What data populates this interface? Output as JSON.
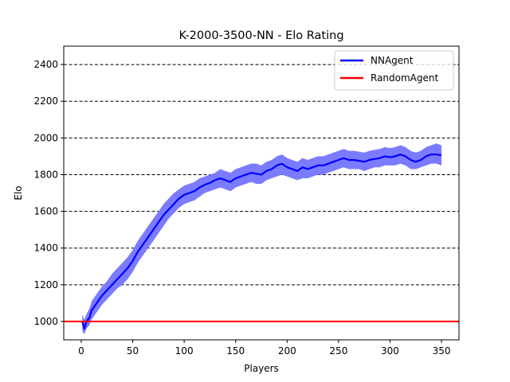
{
  "chart_data": {
    "type": "line",
    "title": "K-2000-3500-NN - Elo Rating",
    "xlabel": "Players",
    "ylabel": "Elo",
    "xlim": [
      -17,
      367
    ],
    "ylim": [
      900,
      2500
    ],
    "xticks": [
      0,
      50,
      100,
      150,
      200,
      250,
      300,
      350
    ],
    "yticks": [
      1000,
      1200,
      1400,
      1600,
      1800,
      2000,
      2200,
      2400
    ],
    "grid": "horizontal dashed",
    "legend_position": "upper right",
    "series": [
      {
        "name": "NNAgent",
        "color": "#0000ff",
        "band_color": "#7b7bff",
        "x": [
          1,
          3,
          5,
          8,
          10,
          15,
          20,
          25,
          30,
          35,
          40,
          45,
          50,
          55,
          60,
          65,
          70,
          75,
          80,
          85,
          90,
          95,
          100,
          105,
          110,
          115,
          120,
          125,
          130,
          135,
          140,
          145,
          150,
          155,
          160,
          165,
          170,
          175,
          180,
          185,
          190,
          195,
          200,
          205,
          210,
          215,
          220,
          225,
          230,
          235,
          240,
          245,
          250,
          255,
          260,
          265,
          270,
          275,
          280,
          285,
          290,
          295,
          300,
          305,
          310,
          315,
          320,
          325,
          330,
          335,
          340,
          345,
          350
        ],
        "values": [
          1000,
          960,
          1000,
          1020,
          1060,
          1100,
          1140,
          1170,
          1200,
          1230,
          1260,
          1290,
          1330,
          1380,
          1420,
          1460,
          1500,
          1540,
          1580,
          1610,
          1640,
          1670,
          1690,
          1700,
          1710,
          1730,
          1745,
          1755,
          1770,
          1780,
          1770,
          1760,
          1780,
          1790,
          1800,
          1810,
          1805,
          1800,
          1820,
          1830,
          1850,
          1860,
          1840,
          1830,
          1820,
          1840,
          1830,
          1840,
          1850,
          1850,
          1860,
          1870,
          1880,
          1890,
          1880,
          1880,
          1875,
          1870,
          1880,
          1885,
          1890,
          1900,
          1895,
          1900,
          1910,
          1900,
          1880,
          1870,
          1880,
          1900,
          1910,
          1910,
          1905
        ],
        "lower": [
          950,
          930,
          960,
          980,
          1010,
          1050,
          1090,
          1120,
          1150,
          1180,
          1200,
          1230,
          1270,
          1320,
          1360,
          1400,
          1440,
          1480,
          1520,
          1560,
          1590,
          1620,
          1640,
          1650,
          1660,
          1680,
          1700,
          1710,
          1720,
          1730,
          1720,
          1710,
          1730,
          1740,
          1750,
          1760,
          1750,
          1750,
          1770,
          1780,
          1790,
          1800,
          1790,
          1780,
          1770,
          1780,
          1780,
          1790,
          1800,
          1800,
          1810,
          1820,
          1830,
          1840,
          1830,
          1830,
          1830,
          1820,
          1830,
          1840,
          1840,
          1850,
          1850,
          1850,
          1860,
          1850,
          1830,
          1830,
          1840,
          1850,
          1860,
          1860,
          1850
        ],
        "upper": [
          1040,
          1010,
          1040,
          1070,
          1110,
          1150,
          1190,
          1220,
          1260,
          1290,
          1320,
          1350,
          1390,
          1440,
          1480,
          1520,
          1560,
          1600,
          1640,
          1670,
          1700,
          1720,
          1740,
          1750,
          1760,
          1780,
          1790,
          1800,
          1810,
          1830,
          1820,
          1810,
          1830,
          1840,
          1850,
          1860,
          1860,
          1850,
          1870,
          1880,
          1900,
          1910,
          1890,
          1880,
          1870,
          1890,
          1880,
          1890,
          1900,
          1900,
          1910,
          1920,
          1930,
          1940,
          1930,
          1930,
          1925,
          1920,
          1930,
          1935,
          1940,
          1950,
          1945,
          1950,
          1960,
          1950,
          1930,
          1920,
          1930,
          1950,
          1960,
          1970,
          1960
        ]
      },
      {
        "name": "RandomAgent",
        "color": "#ff0000",
        "x": [
          -17,
          367
        ],
        "values": [
          1000,
          1000
        ]
      }
    ]
  }
}
